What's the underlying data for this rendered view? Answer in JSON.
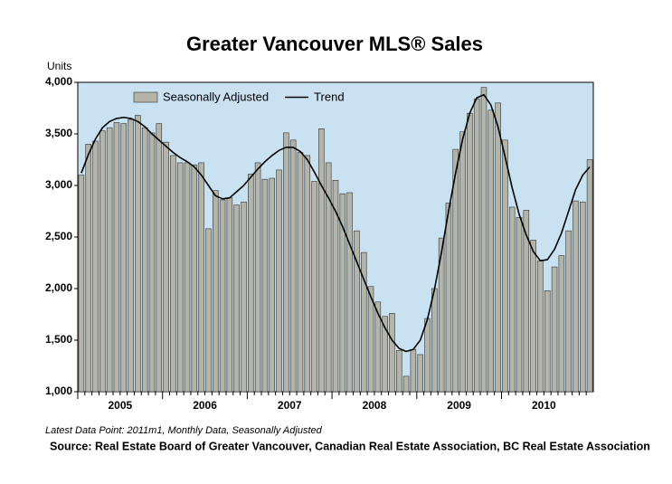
{
  "chart_data": {
    "type": "bar",
    "title": "Greater Vancouver MLS® Sales",
    "y_label": "Units",
    "note": "Latest Data Point: 2011m1, Monthly Data, Seasonally Adjusted",
    "source": "Source: Real Estate Board of Greater Vancouver, Canadian Real Estate Association, BC Real Estate Association",
    "categories": [
      "2005",
      null,
      null,
      null,
      null,
      null,
      null,
      null,
      null,
      null,
      null,
      null,
      "2006",
      null,
      null,
      null,
      null,
      null,
      null,
      null,
      null,
      null,
      null,
      null,
      "2007",
      null,
      null,
      null,
      null,
      null,
      null,
      null,
      null,
      null,
      null,
      null,
      "2008",
      null,
      null,
      null,
      null,
      null,
      null,
      null,
      null,
      null,
      null,
      null,
      "2009",
      null,
      null,
      null,
      null,
      null,
      null,
      null,
      null,
      null,
      null,
      null,
      "2010",
      null,
      null,
      null,
      null,
      null,
      null,
      null,
      null,
      null,
      null,
      null,
      null
    ],
    "series": [
      {
        "name": "Seasonally Adjusted",
        "type": "bar",
        "color": "#b4b4a8",
        "values": [
          3100,
          3400,
          3430,
          3530,
          3560,
          3610,
          3600,
          3640,
          3680,
          3560,
          3510,
          3600,
          3420,
          3290,
          3220,
          3220,
          3200,
          3220,
          2580,
          2950,
          2860,
          2880,
          2810,
          2840,
          3110,
          3220,
          3060,
          3070,
          3150,
          3510,
          3440,
          3320,
          3290,
          3040,
          3550,
          3220,
          3050,
          2920,
          2930,
          2560,
          2350,
          2020,
          1870,
          1730,
          1760,
          1400,
          1150,
          1410,
          1360,
          1710,
          2000,
          2490,
          2830,
          3350,
          3520,
          3700,
          3840,
          3950,
          3730,
          3800,
          3440,
          2790,
          2690,
          2760,
          2470,
          2270,
          1980,
          2210,
          2320,
          2560,
          2850,
          2840,
          3250
        ]
      },
      {
        "name": "Trend",
        "type": "line",
        "color": "#000000",
        "values": [
          3120,
          3300,
          3450,
          3560,
          3620,
          3650,
          3660,
          3650,
          3620,
          3570,
          3500,
          3440,
          3380,
          3320,
          3270,
          3230,
          3180,
          3100,
          3000,
          2900,
          2870,
          2880,
          2940,
          3000,
          3080,
          3160,
          3230,
          3290,
          3340,
          3370,
          3370,
          3330,
          3250,
          3130,
          3000,
          2880,
          2750,
          2600,
          2430,
          2260,
          2090,
          1920,
          1760,
          1620,
          1500,
          1420,
          1390,
          1410,
          1500,
          1700,
          1990,
          2350,
          2750,
          3120,
          3450,
          3700,
          3850,
          3880,
          3780,
          3570,
          3280,
          2980,
          2720,
          2520,
          2360,
          2270,
          2280,
          2380,
          2540,
          2750,
          2960,
          3100,
          3180
        ]
      }
    ],
    "ylim": [
      1000,
      4000
    ],
    "yticks": [
      {
        "value": 1000,
        "label": "1,000"
      },
      {
        "value": 1500,
        "label": "1,500"
      },
      {
        "value": 2000,
        "label": "2,000"
      },
      {
        "value": 2500,
        "label": "2,500"
      },
      {
        "value": 3000,
        "label": "3,000"
      },
      {
        "value": 3500,
        "label": "3,500"
      },
      {
        "value": 4000,
        "label": "4,000"
      }
    ],
    "background": "#c8e2f2",
    "legend": "top-left"
  }
}
